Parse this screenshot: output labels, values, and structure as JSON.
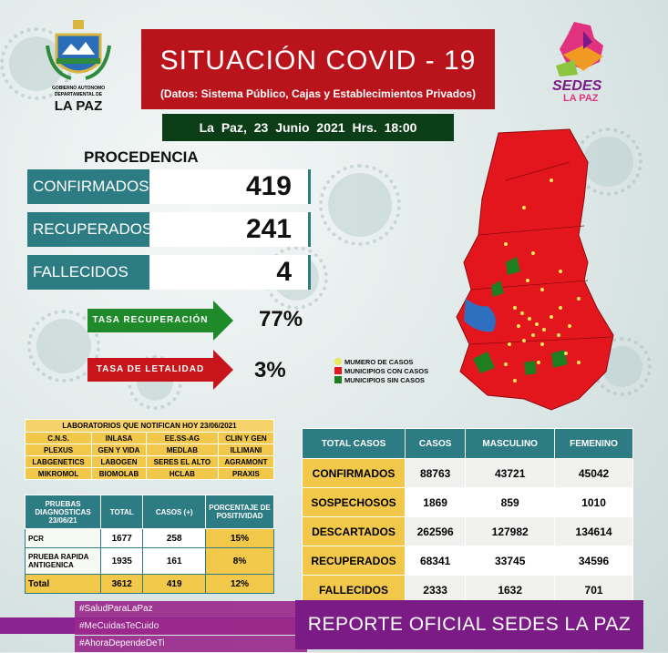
{
  "header": {
    "title": "SITUACIÓN  COVID - 19",
    "subtitle": "(Datos: Sistema Público, Cajas y Establecimientos Privados)",
    "date_line": "La Paz,  23  Junio  2021     Hrs. 18:00"
  },
  "logos": {
    "left": {
      "line1": "GOBIERNO AUTONOMO",
      "line2": "DEPARTAMENTAL DE",
      "line3": "LA PAZ"
    },
    "right": {
      "line1": "SEDES",
      "line2": "LA PAZ"
    }
  },
  "procedencia": {
    "heading": "PROCEDENCIA",
    "stats": [
      {
        "label": "CONFIRMADOS",
        "value": "419"
      },
      {
        "label": "RECUPERADOS",
        "value": "241"
      },
      {
        "label": "FALLECIDOS",
        "value": "4"
      }
    ]
  },
  "rates": {
    "recovery": {
      "label": "TASA RECUPERACIÓN",
      "value": "77%",
      "color": "#1e8a2a"
    },
    "lethality": {
      "label": "TASA  DE LETALIDAD",
      "value": "3%",
      "color": "#c8141b"
    }
  },
  "legend": [
    {
      "label": "MUMERO DE CASOS",
      "color": "#e8e85a"
    },
    {
      "label": "MUNICIPIOS CON CASOS",
      "color": "#e4161d"
    },
    {
      "label": "MUNICIPIOS SIN CASOS",
      "color": "#1f7d22"
    }
  ],
  "labs": {
    "title": "LABORATORIOS QUE NOTIFICAN HOY 23/06/2021",
    "rows": [
      [
        "C.N.S.",
        "INLASA",
        "EE.SS-AG",
        "CLIN Y GEN"
      ],
      [
        "PLEXUS",
        "GEN Y VIDA",
        "MEDLAB",
        "ILLIMANI"
      ],
      [
        "LABGENETICS",
        "LABOGEN",
        "SERES EL ALTO",
        "AGRAMONT"
      ],
      [
        "MIKROMOL",
        "BIOMOLAB",
        "HCLAB",
        "PRAXIS"
      ]
    ]
  },
  "tests": {
    "headers": [
      "PRUEBAS DIAGNOSTICAS 23/06/21",
      "TOTAL",
      "CASOS (+)",
      "PORCENTAJE DE POSITIVIDAD"
    ],
    "rows": [
      {
        "name": "PCR",
        "total": "1677",
        "casos": "258",
        "pct": "15%"
      },
      {
        "name": "PRUEBA RAPIDA ANTIGENICA",
        "total": "1935",
        "casos": "161",
        "pct": "8%"
      },
      {
        "name": "Total",
        "total": "3612",
        "casos": "419",
        "pct": "12%"
      }
    ]
  },
  "totals": {
    "headers": [
      "TOTAL CASOS",
      "CASOS",
      "MASCULINO",
      "FEMENINO"
    ],
    "rows": [
      {
        "name": "CONFIRMADOS",
        "casos": "88763",
        "masc": "43721",
        "fem": "45042"
      },
      {
        "name": "SOSPECHOSOS",
        "casos": "1869",
        "masc": "859",
        "fem": "1010"
      },
      {
        "name": "DESCARTADOS",
        "casos": "262596",
        "masc": "127982",
        "fem": "134614"
      },
      {
        "name": "RECUPERADOS",
        "casos": "68341",
        "masc": "33745",
        "fem": "34596"
      },
      {
        "name": "FALLECIDOS",
        "casos": "2333",
        "masc": "1632",
        "fem": "701"
      }
    ]
  },
  "hashtags": [
    "#SaludParaLaPaz",
    "#MeCuidasTeCuido",
    "#AhoraDependeDeTi"
  ],
  "footer": {
    "report": "REPORTE OFICIAL SEDES LA PAZ"
  }
}
